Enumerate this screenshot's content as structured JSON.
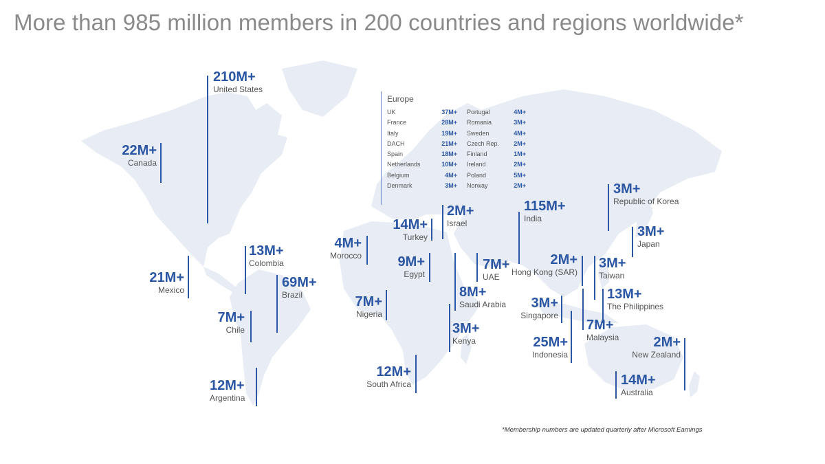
{
  "title": "More than 985 million members in 200 countries and regions worldwide*",
  "footnote": "*Membership numbers are updated quarterly after Microsoft Earnings",
  "colors": {
    "accent": "#2b56a3",
    "map_fill": "#e8ecf4",
    "label": "#555555",
    "title": "#8a8a8a"
  },
  "markers": [
    {
      "id": "united-states",
      "value": "210M+",
      "name": "United States"
    },
    {
      "id": "canada",
      "value": "22M+",
      "name": "Canada"
    },
    {
      "id": "mexico",
      "value": "21M+",
      "name": "Mexico"
    },
    {
      "id": "colombia",
      "value": "13M+",
      "name": "Colombia"
    },
    {
      "id": "brazil",
      "value": "69M+",
      "name": "Brazil"
    },
    {
      "id": "chile",
      "value": "7M+",
      "name": "Chile"
    },
    {
      "id": "argentina",
      "value": "12M+",
      "name": "Argentina"
    },
    {
      "id": "morocco",
      "value": "4M+",
      "name": "Morocco"
    },
    {
      "id": "turkey",
      "value": "14M+",
      "name": "Turkey"
    },
    {
      "id": "israel",
      "value": "2M+",
      "name": "Israel"
    },
    {
      "id": "egypt",
      "value": "9M+",
      "name": "Egypt"
    },
    {
      "id": "nigeria",
      "value": "7M+",
      "name": "Nigeria"
    },
    {
      "id": "saudi-arabia",
      "value": "8M+",
      "name": "Saudi Arabia"
    },
    {
      "id": "uae",
      "value": "7M+",
      "name": "UAE"
    },
    {
      "id": "kenya",
      "value": "3M+",
      "name": "Kenya"
    },
    {
      "id": "south-africa",
      "value": "12M+",
      "name": "South Africa"
    },
    {
      "id": "india",
      "value": "115M+",
      "name": "India"
    },
    {
      "id": "hong-kong",
      "value": "2M+",
      "name": "Hong Kong (SAR)"
    },
    {
      "id": "singapore",
      "value": "3M+",
      "name": "Singapore"
    },
    {
      "id": "indonesia",
      "value": "25M+",
      "name": "Indonesia"
    },
    {
      "id": "malaysia",
      "value": "7M+",
      "name": "Malaysia"
    },
    {
      "id": "republic-of-korea",
      "value": "3M+",
      "name": "Republic of Korea"
    },
    {
      "id": "japan",
      "value": "3M+",
      "name": "Japan"
    },
    {
      "id": "taiwan",
      "value": "3M+",
      "name": "Taiwan"
    },
    {
      "id": "philippines",
      "value": "13M+",
      "name": "The Philippines"
    },
    {
      "id": "new-zealand",
      "value": "2M+",
      "name": "New Zealand"
    },
    {
      "id": "australia",
      "value": "14M+",
      "name": "Australia"
    }
  ],
  "europe": {
    "heading": "Europe",
    "left": [
      {
        "name": "UK",
        "value": "37M+"
      },
      {
        "name": "France",
        "value": "28M+"
      },
      {
        "name": "Italy",
        "value": "19M+"
      },
      {
        "name": "DACH",
        "value": "21M+"
      },
      {
        "name": "Spain",
        "value": "18M+"
      },
      {
        "name": "Netherlands",
        "value": "10M+"
      },
      {
        "name": "Belgium",
        "value": "4M+"
      },
      {
        "name": "Denmark",
        "value": "3M+"
      }
    ],
    "right": [
      {
        "name": "Portugal",
        "value": "4M+"
      },
      {
        "name": "Romania",
        "value": "3M+"
      },
      {
        "name": "Sweden",
        "value": "4M+"
      },
      {
        "name": "Czech Rep.",
        "value": "2M+"
      },
      {
        "name": "Finland",
        "value": "1M+"
      },
      {
        "name": "Ireland",
        "value": "2M+"
      },
      {
        "name": "Poland",
        "value": "5M+"
      },
      {
        "name": "Norway",
        "value": "2M+"
      }
    ]
  }
}
